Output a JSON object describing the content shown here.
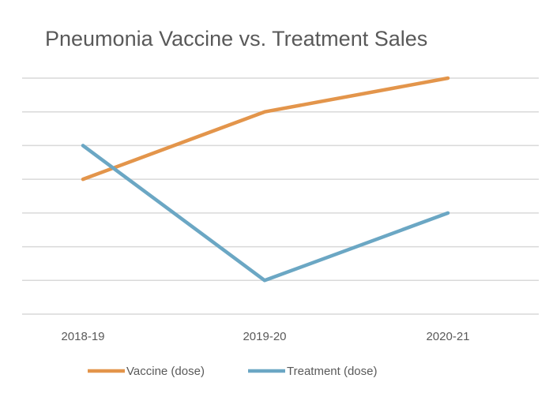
{
  "chart_data": {
    "type": "line",
    "title": "Pneumonia Vaccine vs. Treatment Sales",
    "categories": [
      "2018-19",
      "2019-20",
      "2020-21"
    ],
    "series": [
      {
        "name": "Vaccine (dose)",
        "values": [
          4,
          6,
          7
        ],
        "color": "#E3954B"
      },
      {
        "name": "Treatment (dose)",
        "values": [
          5,
          1,
          3
        ],
        "color": "#6BA7C4"
      }
    ],
    "ylim": [
      0,
      7
    ],
    "grid": true,
    "legend": "bottom",
    "gridline_color": "#D9D9D9"
  }
}
